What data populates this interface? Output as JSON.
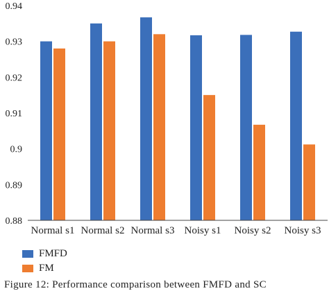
{
  "chart_data": {
    "type": "bar",
    "categories": [
      "Normal s1",
      "Normal s2",
      "Normal s3",
      "Noisy s1",
      "Noisy s2",
      "Noisy s3"
    ],
    "series": [
      {
        "name": "FMFD",
        "color": "#3b6fba",
        "values": [
          0.93,
          0.935,
          0.9367,
          0.9317,
          0.9318,
          0.9327
        ]
      },
      {
        "name": "FM",
        "color": "#ee7d30",
        "values": [
          0.928,
          0.93,
          0.932,
          0.915,
          0.9067,
          0.9012
        ]
      }
    ],
    "yticks": [
      "0.88",
      "0.89",
      "0.9",
      "0.91",
      "0.92",
      "0.93",
      "0.94"
    ],
    "ylim": [
      0.88,
      0.94
    ],
    "grid": false,
    "legend_position": "bottom-left"
  },
  "caption": "Figure 12: Performance comparison between FMFD and SC"
}
